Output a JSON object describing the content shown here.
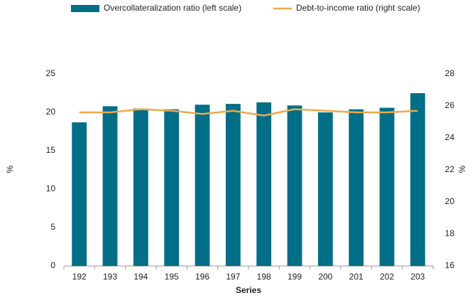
{
  "chart_data": {
    "type": "bar",
    "x_label": "Series",
    "y_label": "%",
    "y2_label": "%",
    "categories": [
      "192",
      "193",
      "194",
      "195",
      "196",
      "197",
      "198",
      "199",
      "200",
      "201",
      "202",
      "203"
    ],
    "series": [
      {
        "name": "Overcollateralization ratio (left scale)",
        "type": "bar",
        "color": "#006f87",
        "values": [
          18.7,
          20.8,
          20.5,
          20.4,
          21.0,
          21.1,
          21.3,
          20.9,
          20.0,
          20.4,
          20.6,
          22.5
        ]
      },
      {
        "name": "Debt-to-income ratio (right scale)",
        "type": "line",
        "axis": "y2",
        "color": "#f0a848",
        "values": [
          25.6,
          25.6,
          25.8,
          25.7,
          25.5,
          25.7,
          25.4,
          25.8,
          25.7,
          25.6,
          25.6,
          25.7
        ]
      }
    ],
    "ylim": [
      0,
      25
    ],
    "yticks": [
      0,
      5,
      10,
      15,
      20,
      25
    ],
    "y2lim": [
      16,
      28
    ],
    "y2ticks": [
      16,
      18,
      20,
      22,
      24,
      26,
      28
    ],
    "legend": "top"
  }
}
